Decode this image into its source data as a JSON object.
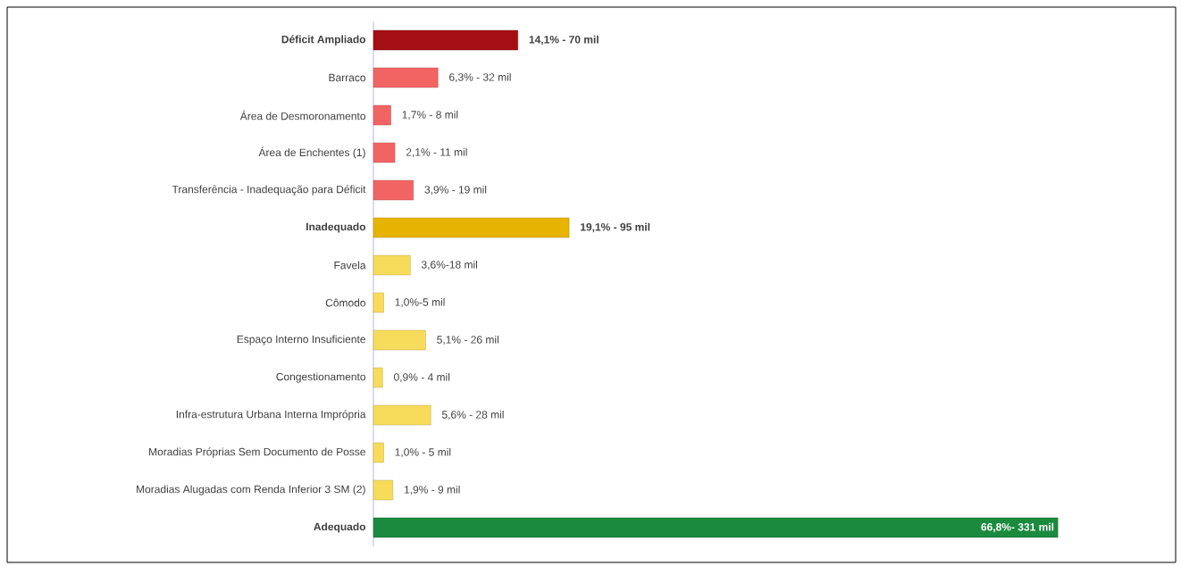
{
  "chart_data": {
    "type": "bar",
    "orientation": "horizontal",
    "categories": [
      "**Déficit Ampliado**",
      "Barraco",
      "Área de Desmoronamento",
      "Área de Enchentes (1)",
      "Transferência - Inadequação para Déficit",
      "**Inadequado**",
      "Favela",
      "Cômodo",
      "Espaço Interno Insuficiente",
      "Congestionamento",
      "Infra-estrutura Urbana Interna Imprópria",
      "Moradias Próprias Sem Documento de Posse",
      "Moradias Alugadas com Renda Inferior 3 SM (2)",
      "**Adequado**"
    ],
    "values": [
      14.1,
      6.3,
      1.7,
      2.1,
      3.9,
      19.1,
      3.6,
      1.0,
      5.1,
      0.9,
      5.6,
      1.0,
      1.9,
      66.8
    ],
    "colors": [
      "#a50e12",
      "#f26464",
      "#f26464",
      "#f26464",
      "#f26464",
      "#e6b400",
      "#f7dc5c",
      "#f7dc5c",
      "#f7dc5c",
      "#f7dc5c",
      "#f7dc5c",
      "#f7dc5c",
      "#f7dc5c",
      "#1b8a3e"
    ],
    "value_labels": [
      "**14,1% - 70 mil**",
      "6,3% - 32 mil",
      "1,7% - 8 mil",
      "2,1% - 11 mil",
      "3,9% - 19 mil",
      "**19,1% - 95 mil**",
      "3,6%-18 mil",
      "1,0%-5 mil",
      "5,1% - 26 mil",
      "0,9% - 4 mil",
      "5,6% - 28 mil",
      "1,0% - 5 mil",
      "1,9% - 9 mil",
      "**66,8%- 331 mil**"
    ]
  }
}
